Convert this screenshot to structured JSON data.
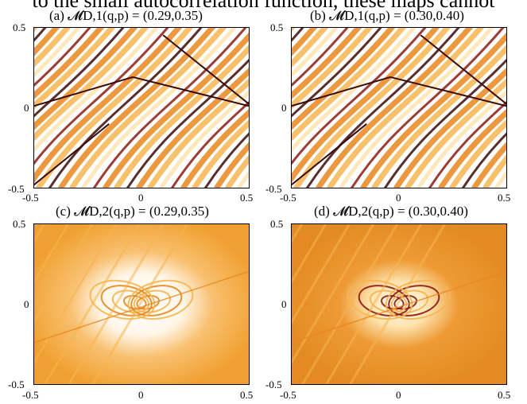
{
  "top_text": "to the small autocorrelation function, these maps cannot",
  "panels": [
    {
      "caption": "(a) 𝓜D,1(q,p) = (0.29,0.35)",
      "pattern": "stripes"
    },
    {
      "caption": "(b) 𝓜D,1(q,p) = (0.30,0.40)",
      "pattern": "stripes"
    },
    {
      "caption": "(c) 𝓜D,2(q,p) = (0.29,0.35)",
      "pattern": "butterfly"
    },
    {
      "caption": "(d) 𝓜D,2(q,p) = (0.30,0.40)",
      "pattern": "butterfly"
    }
  ],
  "axis": {
    "y_ticks": [
      "0.5",
      "0",
      "-0.5"
    ],
    "x_ticks": [
      "-0.5",
      "0",
      "0.5"
    ]
  },
  "colors": {
    "dark": "#3a0a08",
    "maroon": "#8b1a10",
    "orange": "#e8861c",
    "light_orange": "#f6b550",
    "pale": "#fde4b0",
    "field": "#f0a030"
  }
}
